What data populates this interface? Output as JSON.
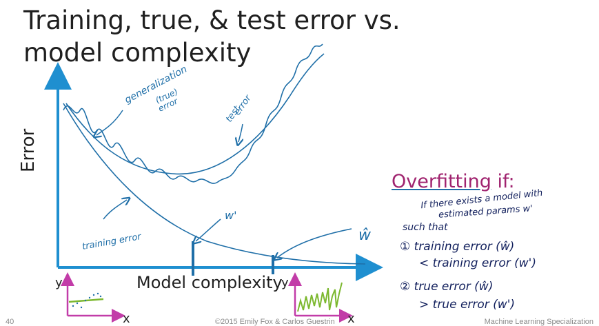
{
  "slide": {
    "title_line1": "Training, true, & test error vs.",
    "title_line2": "model complexity",
    "page_number": "40",
    "footer_center": "©2015 Emily Fox & Carlos Guestrin",
    "footer_right": "Machine Learning Specialization"
  },
  "chart": {
    "y_axis_label": "Error",
    "x_axis_label": "Model complexity",
    "annotations": {
      "generalization_line1": "generalization",
      "generalization_line2": "(true)",
      "generalization_line3": "error",
      "test_line1": "test",
      "test_line2": "error",
      "training": "training error",
      "w_prime": "w'",
      "w_hat": "ŵ"
    },
    "mini_left": {
      "y_label": "y",
      "x_label": "x"
    },
    "mini_right": {
      "y_label": "y",
      "x_label": "x"
    }
  },
  "overfitting": {
    "heading_word": "Overfitting",
    "heading_rest": " if:",
    "line1": "If there exists a model with",
    "line2": "estimated params  w'",
    "line3": "such that",
    "cond1_line1": "① training error (ŵ)",
    "cond1_line2": "< training error (w')",
    "cond2_line1": "② true error (ŵ)",
    "cond2_line2": "> true error (w')"
  },
  "colors": {
    "axis": "#1f8fd0",
    "curve": "#1f6fa8",
    "heading": "#a0236f",
    "handwriting": "#111f5c",
    "mini_axis": "#c23ca8",
    "mini_fit": "#7cb82f"
  }
}
